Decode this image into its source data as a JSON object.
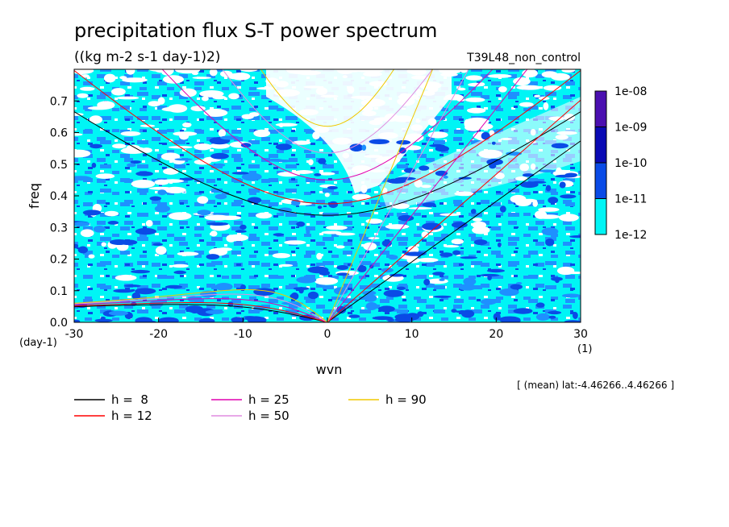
{
  "chart_data": {
    "type": "heatmap",
    "title": "precipitation flux S-T power spectrum",
    "subtitle": "((kg m-2 s-1 day-1)2)",
    "run_label": "T39L48_non_control",
    "xlabel": "wvn",
    "ylabel": "freq",
    "x_unit": "(1)",
    "y_unit": "(day-1)",
    "xlim": [
      -30,
      30
    ],
    "ylim": [
      0,
      0.8
    ],
    "x_ticks": [
      -30,
      -20,
      -10,
      0,
      10,
      20,
      30
    ],
    "x_tick_labels": [
      "-30",
      "-20",
      "-10",
      "0",
      "10",
      "20",
      "30"
    ],
    "y_ticks": [
      0,
      0.1,
      0.2,
      0.3,
      0.4,
      0.5,
      0.6,
      0.7
    ],
    "y_tick_labels": [
      "0.0",
      "0.1",
      "0.2",
      "0.3",
      "0.4",
      "0.5",
      "0.6",
      "0.7"
    ],
    "note": "[ (mean) lat:-4.46266..4.46266 ]",
    "colorbar": {
      "labels": [
        "1e-08",
        "1e-09",
        "1e-10",
        "1e-11",
        "1e-12"
      ],
      "colors": [
        "#4b0fb0",
        "#0a0ab4",
        "#0a4be6",
        "#1e90ff",
        "#00f5f5"
      ]
    },
    "legend": [
      {
        "label": "h =  8",
        "color": "#000000",
        "h": 8
      },
      {
        "label": "h = 12",
        "color": "#ff0000",
        "h": 12
      },
      {
        "label": "h = 25",
        "color": "#e000b0",
        "h": 25
      },
      {
        "label": "h = 50",
        "color": "#e08ce0",
        "h": 50
      },
      {
        "label": "h = 90",
        "color": "#f0c800",
        "h": 90
      }
    ]
  }
}
